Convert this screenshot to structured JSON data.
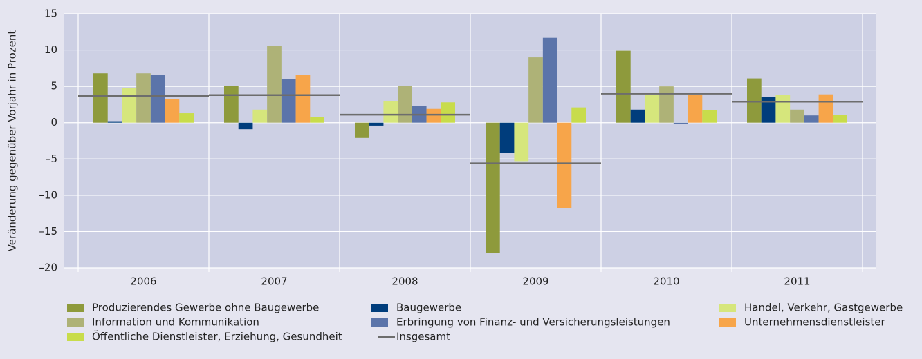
{
  "chart_data": {
    "type": "bar",
    "y_label": "Veränderung gegenüber Vorjahr in Prozent",
    "categories": [
      "2006",
      "2007",
      "2008",
      "2009",
      "2010",
      "2011"
    ],
    "series": [
      {
        "name": "Produzierendes Gewerbe ohne Baugewerbe",
        "color": "#8e9a3c",
        "values": [
          6.8,
          5.1,
          -2.1,
          -18.0,
          9.9,
          6.1
        ]
      },
      {
        "name": "Baugewerbe",
        "color": "#003d7c",
        "values": [
          0.2,
          -0.9,
          -0.4,
          -4.2,
          1.8,
          3.5
        ]
      },
      {
        "name": "Handel, Verkehr, Gastgewerbe",
        "color": "#d6e67c",
        "values": [
          4.8,
          1.8,
          3.0,
          -5.3,
          3.8,
          3.8
        ]
      },
      {
        "name": "Information und Kommunikation",
        "color": "#aeb277",
        "values": [
          6.8,
          10.6,
          5.1,
          9.0,
          5.0,
          1.8
        ]
      },
      {
        "name": "Erbringung von Finanz- und Versicherungsleistungen",
        "color": "#5b74aa",
        "values": [
          6.6,
          6.0,
          2.3,
          11.7,
          -0.2,
          1.0
        ]
      },
      {
        "name": "Unternehmensdienstleister",
        "color": "#f7a54a",
        "values": [
          3.3,
          6.6,
          1.9,
          -11.8,
          3.8,
          3.9
        ]
      },
      {
        "name": "Öffentliche Dienstleister, Erziehung, Gesundheit",
        "color": "#c8dc4b",
        "values": [
          1.3,
          0.8,
          2.8,
          2.1,
          1.7,
          1.1
        ]
      },
      {
        "name": "Insgesamt",
        "color": "#6d6d6d",
        "type": "line",
        "values": [
          3.7,
          3.8,
          1.1,
          -5.6,
          4.0,
          2.9
        ]
      }
    ],
    "ylim": [
      -20,
      15
    ],
    "yticks": [
      {
        "value": -20,
        "label": "–20"
      },
      {
        "value": -15,
        "label": "–15"
      },
      {
        "value": -10,
        "label": "–10"
      },
      {
        "value": -5,
        "label": "–5"
      },
      0,
      5,
      10,
      15
    ],
    "grid": true
  }
}
